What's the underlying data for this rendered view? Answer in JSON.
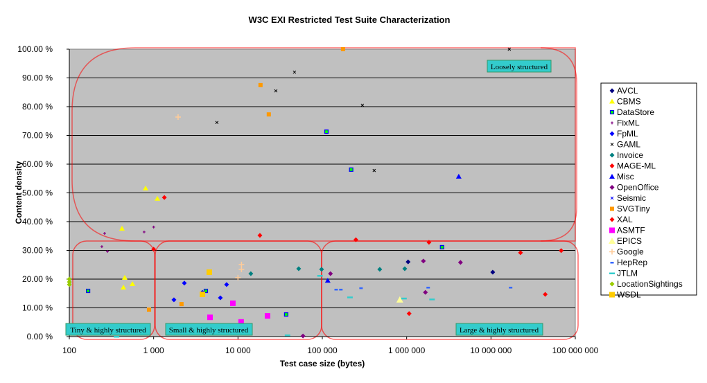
{
  "chart_data": {
    "type": "scatter",
    "title": "W3C EXI Restricted Test Suite Characterization",
    "xlabel": "Test case size (bytes)",
    "ylabel": "Content density",
    "x_scale": "log",
    "xlim": [
      100,
      100000000
    ],
    "ylim": [
      0,
      100
    ],
    "x_ticks": [
      "100",
      "1 000",
      "10 000",
      "100 000",
      "1 000 000",
      "10 000 000",
      "100 000 000"
    ],
    "y_ticks": [
      "0.00 %",
      "10.00 %",
      "20.00 %",
      "30.00 %",
      "40.00 %",
      "50.00 %",
      "60.00 %",
      "70.00 %",
      "80.00 %",
      "90.00 %",
      "100.00 %"
    ],
    "grid": "horizontal",
    "plot_background": "#C0C0C0",
    "legend_position": "right",
    "regions": [
      {
        "label": "Loosely structured"
      },
      {
        "label": "Tiny & highly structured"
      },
      {
        "label": "Small & highly structured"
      },
      {
        "label": "Large & highly structured"
      }
    ],
    "region_color": "#FF0000",
    "region_label_color": "#33CCCC",
    "series": [
      {
        "name": "AVCL",
        "marker": "diamond",
        "color": "#000080",
        "points": [
          [
            1040000,
            26.0
          ],
          [
            10500000,
            22.4
          ]
        ]
      },
      {
        "name": "CBMS",
        "marker": "triangle",
        "color": "#FFFF00",
        "points": [
          [
            802,
            51.6
          ],
          [
            1107,
            48.0
          ],
          [
            421,
            37.6
          ],
          [
            454,
            20.5
          ],
          [
            438,
            17.1
          ],
          [
            560,
            18.3
          ]
        ]
      },
      {
        "name": "DataStore",
        "marker": "square-outline",
        "color": "#0000FF",
        "fill": "#00FF00",
        "points": [
          [
            167,
            15.9
          ],
          [
            4160,
            15.9
          ],
          [
            37300,
            7.7
          ],
          [
            112000,
            71.3
          ],
          [
            220000,
            58.1
          ],
          [
            2630000,
            31.1
          ]
        ]
      },
      {
        "name": "FixML",
        "marker": "plus-small",
        "color": "#800080",
        "points": [
          [
            262,
            35.9
          ],
          [
            243,
            31.3
          ],
          [
            283,
            29.6
          ],
          [
            771,
            36.4
          ],
          [
            1000,
            38.1
          ]
        ]
      },
      {
        "name": "FpML",
        "marker": "diamond",
        "color": "#0000FF",
        "points": [
          [
            1740,
            12.8
          ],
          [
            2312,
            18.6
          ],
          [
            3780,
            15.4
          ],
          [
            6180,
            13.5
          ],
          [
            7330,
            18.1
          ]
        ]
      },
      {
        "name": "GAML",
        "marker": "x",
        "color": "#000000",
        "points": [
          [
            46800,
            92.0
          ],
          [
            28100,
            85.5
          ],
          [
            299000,
            80.5
          ],
          [
            5620,
            74.5
          ],
          [
            412000,
            57.8
          ],
          [
            16500000,
            100.0
          ]
        ]
      },
      {
        "name": "Invoice",
        "marker": "diamond",
        "color": "#008080",
        "points": [
          [
            14200,
            21.9
          ],
          [
            52500,
            23.6
          ],
          [
            98000,
            23.4
          ],
          [
            480000,
            23.4
          ],
          [
            950000,
            23.6
          ]
        ]
      },
      {
        "name": "MAGE-ML",
        "marker": "diamond",
        "color": "#FF0000",
        "points": [
          [
            1340,
            48.4
          ],
          [
            18200,
            35.2
          ],
          [
            1000,
            30.4
          ],
          [
            250000,
            33.7
          ],
          [
            1840000,
            32.8
          ]
        ]
      },
      {
        "name": "Misc",
        "marker": "triangle",
        "color": "#0000FF",
        "points": [
          [
            4150000,
            55.7
          ],
          [
            116000,
            19.5
          ]
        ]
      },
      {
        "name": "OpenOffice",
        "marker": "diamond",
        "color": "#800080",
        "points": [
          [
            125000,
            21.9
          ],
          [
            1580000,
            26.3
          ],
          [
            4350000,
            25.8
          ],
          [
            1670000,
            15.4
          ],
          [
            59000,
            0.2
          ]
        ]
      },
      {
        "name": "Seismic",
        "marker": "x",
        "color": "#0000FF",
        "points": []
      },
      {
        "name": "SVGTiny",
        "marker": "square",
        "color": "#FF9900",
        "points": [
          [
            176000,
            100.0
          ],
          [
            18500,
            87.5
          ],
          [
            23200,
            77.3
          ],
          [
            881,
            9.4
          ],
          [
            2140,
            11.3
          ]
        ]
      },
      {
        "name": "XAL",
        "marker": "diamond",
        "color": "#FF0000",
        "points": [
          [
            22400000,
            29.2
          ],
          [
            1070000,
            8.0
          ],
          [
            44000000,
            14.7
          ],
          [
            68000000,
            29.9
          ]
        ]
      },
      {
        "name": "ASMTF",
        "marker": "square-large",
        "color": "#FF00FF",
        "points": [
          [
            4660,
            6.7
          ],
          [
            8690,
            11.6
          ],
          [
            10900,
            5.1
          ],
          [
            22400,
            7.2
          ]
        ]
      },
      {
        "name": "EPICS",
        "marker": "triangle-large",
        "color": "#FFFF99",
        "points": [
          [
            830000,
            12.8
          ]
        ]
      },
      {
        "name": "Google",
        "marker": "plus",
        "color": "#FFCC99",
        "points": [
          [
            1950,
            76.4
          ],
          [
            11000,
            25.1
          ],
          [
            11000,
            23.4
          ],
          [
            10000,
            20.5
          ]
        ]
      },
      {
        "name": "HepRep",
        "marker": "dash-small",
        "color": "#3366FF",
        "points": [
          [
            146000,
            16.4
          ],
          [
            166000,
            16.4
          ],
          [
            288000,
            16.9
          ],
          [
            1800000,
            17.1
          ],
          [
            17100000,
            17.1
          ]
        ]
      },
      {
        "name": "JTLM",
        "marker": "dash",
        "color": "#33CCCC",
        "points": [
          [
            363,
            0.0
          ],
          [
            38700,
            0.5
          ],
          [
            94000,
            21.2
          ],
          [
            213000,
            13.7
          ],
          [
            930000,
            13.3
          ],
          [
            2000000,
            13.0
          ]
        ]
      },
      {
        "name": "LocationSightings",
        "marker": "diamond",
        "color": "#99CC00",
        "points": [
          [
            100,
            20.0
          ],
          [
            100,
            19.0
          ],
          [
            100,
            18.1
          ]
        ]
      },
      {
        "name": "WSDL",
        "marker": "square-large",
        "color": "#FFCC00",
        "points": [
          [
            4570,
            22.4
          ],
          [
            3790,
            14.7
          ]
        ]
      }
    ]
  }
}
